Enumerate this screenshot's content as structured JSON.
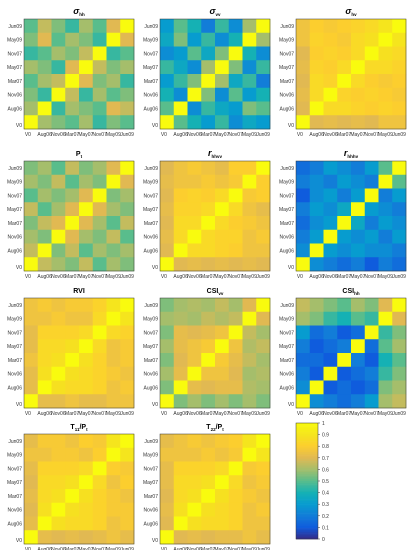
{
  "chart_data": {
    "type": "heatmap",
    "row_labels": [
      "Jun09",
      "May09",
      "Nov07",
      "May07",
      "Mar07",
      "Nov06",
      "Aug06",
      "V0"
    ],
    "col_labels": [
      "V0",
      "Aug06",
      "Nov06",
      "Mar07",
      "May07",
      "Nov07",
      "May09",
      "Jun09"
    ],
    "colorbar": {
      "ticks": [
        "0",
        "0.1",
        "0.2",
        "0.3",
        "0.4",
        "0.5",
        "0.6",
        "0.7",
        "0.8",
        "0.9",
        "1"
      ],
      "range": [
        0,
        1
      ],
      "colormap": "parula"
    },
    "panels": [
      {
        "title": "σ_hh",
        "title_main": "σ",
        "title_sub": "hh",
        "matrix": [
          [
            0.5,
            0.65,
            0.55,
            0.45,
            0.6,
            0.5,
            0.7,
            1.0
          ],
          [
            0.55,
            0.7,
            0.5,
            0.6,
            0.55,
            0.45,
            1.0,
            0.7
          ],
          [
            0.45,
            0.5,
            0.6,
            0.55,
            0.65,
            1.0,
            0.45,
            0.5
          ],
          [
            0.6,
            0.55,
            0.45,
            0.7,
            1.0,
            0.65,
            0.55,
            0.6
          ],
          [
            0.5,
            0.6,
            0.65,
            1.0,
            0.7,
            0.55,
            0.6,
            0.45
          ],
          [
            0.55,
            0.45,
            1.0,
            0.65,
            0.45,
            0.6,
            0.5,
            0.55
          ],
          [
            0.6,
            1.0,
            0.45,
            0.6,
            0.55,
            0.5,
            0.7,
            0.65
          ],
          [
            1.0,
            0.6,
            0.55,
            0.5,
            0.6,
            0.45,
            0.55,
            0.5
          ]
        ]
      },
      {
        "title": "σ_vv",
        "title_main": "σ",
        "title_sub": "vv",
        "matrix": [
          [
            0.3,
            0.5,
            0.4,
            0.2,
            0.45,
            0.25,
            0.6,
            1.0
          ],
          [
            0.35,
            0.55,
            0.3,
            0.45,
            0.25,
            0.4,
            1.0,
            0.6
          ],
          [
            0.25,
            0.3,
            0.5,
            0.35,
            0.55,
            1.0,
            0.4,
            0.25
          ],
          [
            0.45,
            0.35,
            0.25,
            0.6,
            1.0,
            0.55,
            0.25,
            0.45
          ],
          [
            0.3,
            0.45,
            0.55,
            1.0,
            0.6,
            0.35,
            0.45,
            0.2
          ],
          [
            0.4,
            0.25,
            1.0,
            0.55,
            0.25,
            0.5,
            0.3,
            0.4
          ],
          [
            0.5,
            1.0,
            0.25,
            0.45,
            0.35,
            0.3,
            0.55,
            0.5
          ],
          [
            1.0,
            0.5,
            0.4,
            0.3,
            0.45,
            0.25,
            0.35,
            0.3
          ]
        ]
      },
      {
        "title": "σ_hv",
        "title_main": "σ",
        "title_sub": "hv",
        "matrix": [
          [
            0.75,
            0.8,
            0.78,
            0.8,
            0.82,
            0.85,
            0.9,
            1.0
          ],
          [
            0.75,
            0.82,
            0.8,
            0.78,
            0.85,
            0.88,
            1.0,
            0.9
          ],
          [
            0.7,
            0.8,
            0.82,
            0.8,
            0.85,
            1.0,
            0.88,
            0.85
          ],
          [
            0.72,
            0.82,
            0.8,
            0.85,
            1.0,
            0.85,
            0.85,
            0.82
          ],
          [
            0.7,
            0.85,
            0.82,
            1.0,
            0.85,
            0.8,
            0.78,
            0.8
          ],
          [
            0.72,
            0.85,
            1.0,
            0.82,
            0.8,
            0.82,
            0.8,
            0.78
          ],
          [
            0.7,
            1.0,
            0.85,
            0.85,
            0.82,
            0.8,
            0.82,
            0.8
          ],
          [
            1.0,
            0.7,
            0.72,
            0.7,
            0.72,
            0.7,
            0.75,
            0.75
          ]
        ]
      },
      {
        "title": "P_t",
        "title_main": "P",
        "title_sub": "t",
        "matrix": [
          [
            0.55,
            0.6,
            0.5,
            0.65,
            0.55,
            0.6,
            0.7,
            1.0
          ],
          [
            0.6,
            0.55,
            0.65,
            0.5,
            0.6,
            0.55,
            1.0,
            0.7
          ],
          [
            0.5,
            0.6,
            0.55,
            0.6,
            0.7,
            1.0,
            0.55,
            0.6
          ],
          [
            0.65,
            0.5,
            0.6,
            0.7,
            1.0,
            0.7,
            0.6,
            0.55
          ],
          [
            0.55,
            0.65,
            0.7,
            1.0,
            0.7,
            0.6,
            0.5,
            0.65
          ],
          [
            0.6,
            0.55,
            1.0,
            0.7,
            0.6,
            0.55,
            0.65,
            0.5
          ],
          [
            0.65,
            1.0,
            0.55,
            0.65,
            0.5,
            0.6,
            0.55,
            0.6
          ],
          [
            1.0,
            0.65,
            0.6,
            0.55,
            0.65,
            0.5,
            0.6,
            0.55
          ]
        ]
      },
      {
        "title": "r_hhvv",
        "title_main": "r",
        "title_sub": "hhvv",
        "matrix": [
          [
            0.7,
            0.75,
            0.78,
            0.75,
            0.72,
            0.8,
            0.8,
            1.0
          ],
          [
            0.72,
            0.75,
            0.75,
            0.78,
            0.75,
            0.78,
            1.0,
            0.8
          ],
          [
            0.7,
            0.8,
            0.82,
            0.8,
            0.85,
            1.0,
            0.78,
            0.8
          ],
          [
            0.72,
            0.82,
            0.82,
            0.85,
            1.0,
            0.85,
            0.75,
            0.72
          ],
          [
            0.7,
            0.85,
            0.85,
            1.0,
            0.85,
            0.8,
            0.78,
            0.75
          ],
          [
            0.72,
            0.85,
            1.0,
            0.85,
            0.82,
            0.82,
            0.75,
            0.78
          ],
          [
            0.7,
            1.0,
            0.85,
            0.85,
            0.82,
            0.8,
            0.75,
            0.75
          ],
          [
            1.0,
            0.7,
            0.72,
            0.7,
            0.72,
            0.7,
            0.72,
            0.7
          ]
        ]
      },
      {
        "title": "r_hhhv",
        "title_main": "r",
        "title_sub": "hhhv",
        "matrix": [
          [
            0.15,
            0.2,
            0.3,
            0.25,
            0.2,
            0.3,
            0.5,
            1.0
          ],
          [
            0.2,
            0.25,
            0.2,
            0.3,
            0.25,
            0.2,
            1.0,
            0.5
          ],
          [
            0.1,
            0.25,
            0.3,
            0.2,
            0.3,
            1.0,
            0.2,
            0.3
          ],
          [
            0.2,
            0.3,
            0.25,
            0.35,
            1.0,
            0.3,
            0.25,
            0.2
          ],
          [
            0.15,
            0.25,
            0.3,
            1.0,
            0.35,
            0.2,
            0.3,
            0.25
          ],
          [
            0.2,
            0.3,
            1.0,
            0.3,
            0.25,
            0.3,
            0.2,
            0.3
          ],
          [
            0.25,
            1.0,
            0.3,
            0.25,
            0.3,
            0.25,
            0.25,
            0.2
          ],
          [
            1.0,
            0.25,
            0.2,
            0.15,
            0.2,
            0.1,
            0.2,
            0.15
          ]
        ]
      },
      {
        "title": "RVI",
        "title_main": "RVI",
        "title_sub": "",
        "matrix": [
          [
            0.75,
            0.78,
            0.75,
            0.78,
            0.78,
            0.82,
            0.9,
            1.0
          ],
          [
            0.75,
            0.75,
            0.78,
            0.75,
            0.75,
            0.85,
            1.0,
            0.9
          ],
          [
            0.72,
            0.82,
            0.82,
            0.82,
            0.85,
            1.0,
            0.85,
            0.82
          ],
          [
            0.72,
            0.85,
            0.85,
            0.88,
            1.0,
            0.85,
            0.75,
            0.78
          ],
          [
            0.75,
            0.85,
            0.88,
            1.0,
            0.88,
            0.82,
            0.75,
            0.78
          ],
          [
            0.72,
            0.88,
            1.0,
            0.88,
            0.85,
            0.82,
            0.78,
            0.75
          ],
          [
            0.72,
            1.0,
            0.88,
            0.85,
            0.85,
            0.82,
            0.75,
            0.78
          ],
          [
            1.0,
            0.72,
            0.72,
            0.75,
            0.72,
            0.72,
            0.75,
            0.75
          ]
        ]
      },
      {
        "title": "CSI_vv",
        "title_main": "CSI",
        "title_sub": "vv",
        "matrix": [
          [
            0.55,
            0.6,
            0.62,
            0.6,
            0.65,
            0.6,
            0.7,
            1.0
          ],
          [
            0.6,
            0.62,
            0.6,
            0.65,
            0.62,
            0.65,
            1.0,
            0.7
          ],
          [
            0.55,
            0.72,
            0.7,
            0.72,
            0.75,
            1.0,
            0.65,
            0.6
          ],
          [
            0.6,
            0.72,
            0.75,
            0.78,
            1.0,
            0.75,
            0.62,
            0.65
          ],
          [
            0.55,
            0.7,
            0.75,
            1.0,
            0.78,
            0.72,
            0.65,
            0.6
          ],
          [
            0.6,
            0.72,
            1.0,
            0.75,
            0.75,
            0.7,
            0.6,
            0.62
          ],
          [
            0.55,
            1.0,
            0.72,
            0.7,
            0.72,
            0.72,
            0.62,
            0.6
          ],
          [
            1.0,
            0.55,
            0.6,
            0.55,
            0.6,
            0.55,
            0.6,
            0.55
          ]
        ]
      },
      {
        "title": "CSI_hh",
        "title_main": "CSI",
        "title_sub": "hh",
        "matrix": [
          [
            0.65,
            0.6,
            0.55,
            0.5,
            0.6,
            0.55,
            0.7,
            1.0
          ],
          [
            0.6,
            0.55,
            0.45,
            0.4,
            0.5,
            0.45,
            1.0,
            0.7
          ],
          [
            0.3,
            0.15,
            0.2,
            0.1,
            0.15,
            1.0,
            0.45,
            0.55
          ],
          [
            0.2,
            0.1,
            0.15,
            0.2,
            1.0,
            0.15,
            0.5,
            0.6
          ],
          [
            0.15,
            0.15,
            0.1,
            1.0,
            0.2,
            0.1,
            0.4,
            0.5
          ],
          [
            0.2,
            0.1,
            1.0,
            0.1,
            0.15,
            0.2,
            0.45,
            0.55
          ],
          [
            0.25,
            1.0,
            0.1,
            0.15,
            0.1,
            0.15,
            0.55,
            0.6
          ],
          [
            1.0,
            0.25,
            0.2,
            0.15,
            0.2,
            0.3,
            0.6,
            0.65
          ]
        ]
      },
      {
        "title": "T_11/P_t",
        "title_main": "T",
        "title_sub": "11",
        "title_tail": "/P",
        "title_tail_sub": "t",
        "matrix": [
          [
            0.72,
            0.78,
            0.78,
            0.75,
            0.8,
            0.78,
            0.9,
            1.0
          ],
          [
            0.75,
            0.75,
            0.78,
            0.78,
            0.75,
            0.8,
            1.0,
            0.9
          ],
          [
            0.72,
            0.82,
            0.82,
            0.82,
            0.85,
            1.0,
            0.8,
            0.78
          ],
          [
            0.7,
            0.85,
            0.85,
            0.88,
            1.0,
            0.85,
            0.75,
            0.8
          ],
          [
            0.72,
            0.85,
            0.88,
            1.0,
            0.88,
            0.82,
            0.78,
            0.75
          ],
          [
            0.7,
            0.88,
            1.0,
            0.88,
            0.85,
            0.82,
            0.78,
            0.78
          ],
          [
            0.72,
            1.0,
            0.88,
            0.85,
            0.85,
            0.82,
            0.75,
            0.78
          ],
          [
            1.0,
            0.72,
            0.7,
            0.72,
            0.7,
            0.72,
            0.75,
            0.72
          ]
        ]
      },
      {
        "title": "T_22/P_t",
        "title_main": "T",
        "title_sub": "22",
        "title_tail": "/P",
        "title_tail_sub": "t",
        "matrix": [
          [
            0.72,
            0.75,
            0.78,
            0.75,
            0.78,
            0.8,
            0.9,
            1.0
          ],
          [
            0.75,
            0.75,
            0.75,
            0.78,
            0.75,
            0.78,
            1.0,
            0.9
          ],
          [
            0.72,
            0.82,
            0.82,
            0.82,
            0.85,
            1.0,
            0.78,
            0.8
          ],
          [
            0.72,
            0.85,
            0.85,
            0.88,
            1.0,
            0.85,
            0.75,
            0.78
          ],
          [
            0.7,
            0.85,
            0.88,
            1.0,
            0.88,
            0.82,
            0.78,
            0.75
          ],
          [
            0.72,
            0.88,
            1.0,
            0.88,
            0.85,
            0.82,
            0.75,
            0.78
          ],
          [
            0.7,
            1.0,
            0.88,
            0.85,
            0.85,
            0.82,
            0.75,
            0.75
          ],
          [
            1.0,
            0.7,
            0.72,
            0.7,
            0.72,
            0.72,
            0.75,
            0.72
          ]
        ]
      }
    ]
  }
}
